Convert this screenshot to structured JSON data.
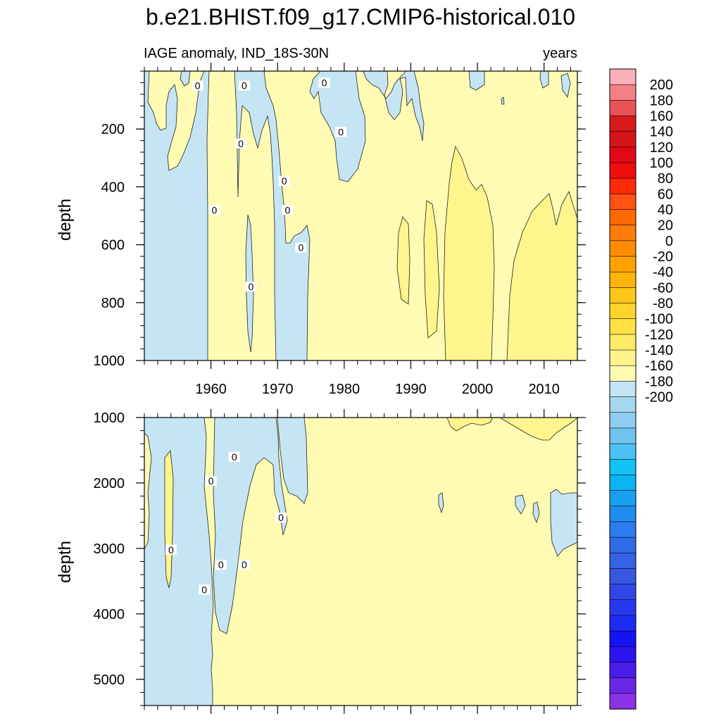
{
  "title": "b.e21.BHIST.f09_g17.CMIP6-historical.010",
  "chart_data": {
    "type": "heatmap",
    "variable_label": "IAGE anomaly, IND_18S-30N",
    "units": "years",
    "x": {
      "range": [
        1950,
        2015
      ],
      "ticks": [
        1960,
        1970,
        1980,
        1990,
        2000,
        2010
      ],
      "tick_labels": [
        "1960",
        "1970",
        "1980",
        "1990",
        "2000",
        "2010"
      ]
    },
    "panels": [
      {
        "name": "upper",
        "ylabel": "depth",
        "depth_range": [
          0,
          1000
        ],
        "y_ticks": [
          200,
          400,
          600,
          800,
          1000
        ],
        "y_tick_labels": [
          "200",
          "400",
          "600",
          "800",
          "1000"
        ],
        "contour_labels": [
          {
            "year": 1958,
            "depth": 50,
            "text": "0"
          },
          {
            "year": 1965,
            "depth": 50,
            "text": "0"
          },
          {
            "year": 1977,
            "depth": 40,
            "text": "0"
          },
          {
            "year": 1979.5,
            "depth": 210,
            "text": "0"
          },
          {
            "year": 1964.5,
            "depth": 250,
            "text": "0"
          },
          {
            "year": 1971,
            "depth": 380,
            "text": "0"
          },
          {
            "year": 1960.5,
            "depth": 480,
            "text": "0"
          },
          {
            "year": 1971.5,
            "depth": 480,
            "text": "0"
          },
          {
            "year": 1973.5,
            "depth": 610,
            "text": "0"
          },
          {
            "year": 1966,
            "depth": 745,
            "text": "0"
          }
        ]
      },
      {
        "name": "lower",
        "ylabel": "depth",
        "depth_range": [
          1000,
          5400
        ],
        "y_ticks": [
          1000,
          2000,
          3000,
          4000,
          5000
        ],
        "y_tick_labels": [
          "1000",
          "2000",
          "3000",
          "4000",
          "5000"
        ],
        "contour_labels": [
          {
            "year": 1963.5,
            "depth": 1600,
            "text": "0"
          },
          {
            "year": 1960,
            "depth": 1970,
            "text": "0"
          },
          {
            "year": 1970.5,
            "depth": 2530,
            "text": "0"
          },
          {
            "year": 1954,
            "depth": 3020,
            "text": "0"
          },
          {
            "year": 1961.5,
            "depth": 3250,
            "text": "0"
          },
          {
            "year": 1965,
            "depth": 3250,
            "text": "0"
          },
          {
            "year": 1959,
            "depth": 3630,
            "text": "0"
          }
        ]
      }
    ],
    "colorbar": {
      "labels": [
        "200",
        "180",
        "160",
        "140",
        "120",
        "100",
        "80",
        "60",
        "40",
        "20",
        "0",
        "-20",
        "-40",
        "-60",
        "-80",
        "-100",
        "-120",
        "-140",
        "-160",
        "-180",
        "-200"
      ],
      "colors": [
        "#fbb1b9",
        "#f28085",
        "#e95257",
        "#d9191c",
        "#d5141a",
        "#e20817",
        "#f00d0d",
        "#ff2a08",
        "#ff5213",
        "#ff6a00",
        "#ff7c0a",
        "#ff8c00",
        "#ffa200",
        "#ffb40a",
        "#ffc61a",
        "#ffd42a",
        "#ffe045",
        "#ffea68",
        "#fff38c",
        "#fffab2",
        "#c4e4f5",
        "#a5d8ee",
        "#8dcdf0",
        "#6ec5ee",
        "#4bc2f3",
        "#13c3f5",
        "#0ab4f5",
        "#16a0f0",
        "#1e8df0",
        "#2a7cf0",
        "#2f6ce8",
        "#3561e5",
        "#3858e2",
        "#3146e6",
        "#2838f0",
        "#1c2af2",
        "#1414f5",
        "#2a14f0",
        "#4a1ee8",
        "#6a28e6",
        "#8c32e6"
      ]
    },
    "fill_colors": {
      "negative_light": "#c5e5f5",
      "zero_to_20": "#fffbb3",
      "twenty_to_40": "#fff58d"
    }
  }
}
